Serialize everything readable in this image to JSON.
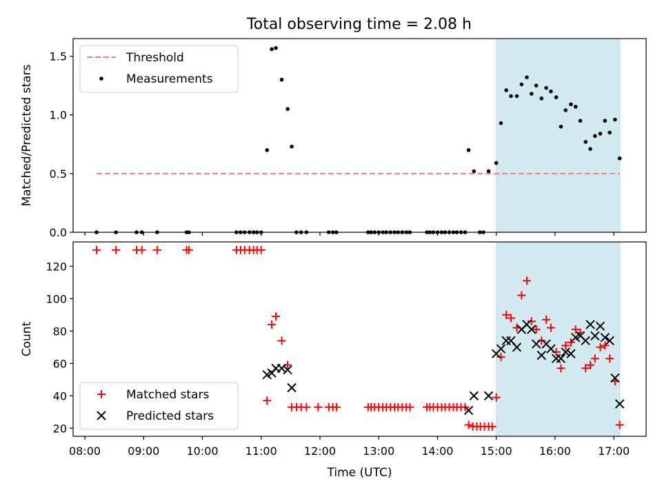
{
  "figure": {
    "title": "Total observing time = 2.08 h"
  },
  "chart_data": [
    {
      "type": "scatter",
      "panel": "top",
      "ylabel": "Matched/Predicted stars",
      "ylim": [
        0,
        1.65
      ],
      "yticks": [
        0.0,
        0.5,
        1.0,
        1.5
      ],
      "ytick_labels": [
        "0.0",
        "0.5",
        "1.0",
        "1.5"
      ],
      "xlim": [
        7.8,
        17.55
      ],
      "shaded_region": [
        15.0,
        17.1
      ],
      "shade_color": "#d4eaf1",
      "legend": {
        "placement": "top-left",
        "entries": [
          "Threshold",
          "Measurements"
        ]
      },
      "threshold": {
        "name": "Threshold",
        "value": 0.5,
        "x_range": [
          8.2,
          17.1
        ],
        "color": "#f07f7f"
      },
      "series": [
        {
          "name": "Measurements",
          "color": "#000000",
          "x": [
            8.2,
            8.53,
            8.88,
            8.97,
            9.23,
            9.73,
            9.77,
            10.58,
            10.65,
            10.72,
            10.8,
            10.87,
            10.93,
            11.0,
            11.1,
            11.18,
            11.25,
            11.35,
            11.45,
            11.52,
            11.6,
            11.68,
            11.77,
            12.15,
            12.22,
            12.28,
            12.82,
            12.87,
            12.93,
            13.0,
            13.07,
            13.13,
            13.2,
            13.27,
            13.33,
            13.4,
            13.47,
            13.53,
            13.82,
            13.87,
            13.93,
            14.0,
            14.07,
            14.13,
            14.2,
            14.27,
            14.33,
            14.4,
            14.47,
            14.53,
            14.62,
            14.72,
            14.78,
            14.87,
            15.0,
            15.08,
            15.17,
            15.25,
            15.35,
            15.43,
            15.52,
            15.6,
            15.68,
            15.77,
            15.85,
            15.93,
            16.02,
            16.1,
            16.18,
            16.27,
            16.35,
            16.43,
            16.52,
            16.6,
            16.68,
            16.77,
            16.85,
            16.93,
            17.02,
            17.1
          ],
          "y": [
            0,
            0,
            0,
            0,
            0,
            0,
            0,
            0,
            0,
            0,
            0,
            0,
            0,
            0,
            0.7,
            1.56,
            1.57,
            1.3,
            1.05,
            0.73,
            0,
            0,
            0,
            0,
            0,
            0,
            0,
            0,
            0,
            0,
            0,
            0,
            0,
            0,
            0,
            0,
            0,
            0,
            0,
            0,
            0,
            0,
            0,
            0,
            0,
            0,
            0,
            0,
            0,
            0.7,
            0.52,
            0,
            0,
            0.52,
            0.59,
            0.93,
            1.21,
            1.16,
            1.16,
            1.26,
            1.32,
            1.18,
            1.25,
            1.14,
            1.23,
            1.2,
            1.15,
            0.9,
            1.04,
            1.09,
            1.07,
            0.95,
            0.77,
            0.71,
            0.82,
            0.84,
            0.95,
            0.85,
            0.96,
            0.63
          ]
        }
      ]
    },
    {
      "type": "scatter",
      "panel": "bottom",
      "xlabel": "Time (UTC)",
      "ylabel": "Count",
      "ylim": [
        15,
        135
      ],
      "yticks": [
        20,
        40,
        60,
        80,
        100,
        120
      ],
      "ytick_labels": [
        "20",
        "40",
        "60",
        "80",
        "100",
        "120"
      ],
      "xlim": [
        7.8,
        17.55
      ],
      "xticks": [
        8,
        9,
        10,
        11,
        12,
        13,
        14,
        15,
        16,
        17
      ],
      "xtick_labels": [
        "08:00",
        "09:00",
        "10:00",
        "11:00",
        "12:00",
        "13:00",
        "14:00",
        "15:00",
        "16:00",
        "17:00"
      ],
      "shaded_region": [
        15.0,
        17.1
      ],
      "legend": {
        "placement": "bottom-left",
        "entries": [
          "Matched stars",
          "Predicted stars"
        ]
      },
      "series": [
        {
          "name": "Matched stars",
          "marker": "plus",
          "color": "#ff0000",
          "x": [
            8.2,
            8.53,
            8.88,
            8.97,
            9.23,
            9.73,
            9.77,
            10.58,
            10.65,
            10.72,
            10.8,
            10.87,
            10.93,
            11.0,
            11.1,
            11.18,
            11.25,
            11.35,
            11.45,
            11.52,
            11.6,
            11.68,
            11.77,
            11.97,
            12.15,
            12.22,
            12.28,
            12.82,
            12.87,
            12.93,
            13.0,
            13.07,
            13.13,
            13.2,
            13.27,
            13.33,
            13.4,
            13.47,
            13.53,
            13.82,
            13.87,
            13.93,
            14.0,
            14.07,
            14.13,
            14.2,
            14.27,
            14.33,
            14.4,
            14.47,
            14.53,
            14.6,
            14.67,
            14.73,
            14.8,
            14.87,
            14.93,
            15.0,
            15.08,
            15.17,
            15.25,
            15.35,
            15.43,
            15.52,
            15.6,
            15.68,
            15.77,
            15.85,
            15.93,
            16.02,
            16.1,
            16.18,
            16.27,
            16.35,
            16.43,
            16.52,
            16.6,
            16.68,
            16.77,
            16.85,
            16.93,
            17.02,
            17.1
          ],
          "y": [
            130,
            130,
            130,
            130,
            130,
            130,
            130,
            130,
            130,
            130,
            130,
            130,
            130,
            130,
            37,
            84,
            89,
            74,
            59,
            33,
            33,
            33,
            33,
            33,
            33,
            33,
            33,
            33,
            33,
            33,
            33,
            33,
            33,
            33,
            33,
            33,
            33,
            33,
            33,
            33,
            33,
            33,
            33,
            33,
            33,
            33,
            33,
            33,
            33,
            33,
            22,
            21,
            21,
            21,
            21,
            21,
            21,
            39,
            64,
            90,
            88,
            82,
            102,
            111,
            86,
            81,
            74,
            87,
            82,
            67,
            57,
            71,
            73,
            81,
            79,
            57,
            59,
            63,
            70,
            71,
            63,
            49,
            22
          ]
        },
        {
          "name": "Predicted stars",
          "marker": "x",
          "color": "#000000",
          "x": [
            11.1,
            11.18,
            11.25,
            11.35,
            11.45,
            11.52,
            14.53,
            14.62,
            14.87,
            15.0,
            15.08,
            15.17,
            15.25,
            15.35,
            15.43,
            15.52,
            15.6,
            15.68,
            15.77,
            15.85,
            15.93,
            16.02,
            16.1,
            16.18,
            16.27,
            16.35,
            16.43,
            16.52,
            16.6,
            16.68,
            16.77,
            16.85,
            16.93,
            17.02,
            17.1
          ],
          "y": [
            53,
            54,
            57,
            57,
            56,
            45,
            31,
            40,
            40,
            66,
            69,
            74,
            74,
            70,
            81,
            84,
            81,
            72,
            65,
            72,
            69,
            63,
            63,
            67,
            66,
            76,
            77,
            74,
            84,
            77,
            83,
            76,
            74,
            51,
            35
          ]
        }
      ]
    }
  ]
}
